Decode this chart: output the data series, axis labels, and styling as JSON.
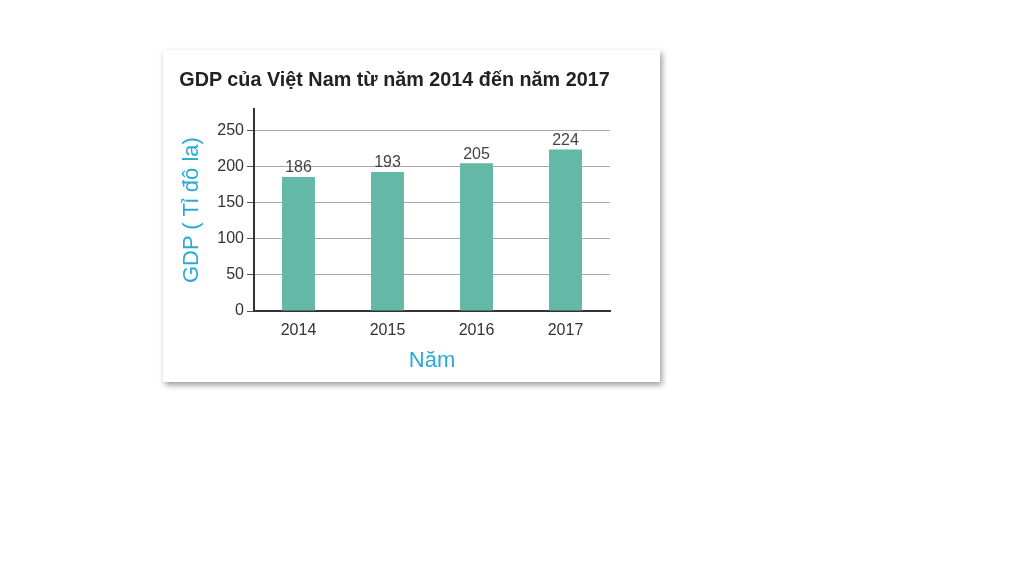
{
  "chart_data": {
    "type": "bar",
    "title": "GDP của Việt Nam từ năm 2014 đến năm 2017",
    "xlabel": "Năm",
    "ylabel": "GDP ( Tỉ đô la)",
    "categories": [
      "2014",
      "2015",
      "2016",
      "2017"
    ],
    "values": [
      186,
      193,
      205,
      224
    ],
    "color": "#63b9a6",
    "ylim": [
      0,
      280
    ],
    "yticks": [
      0,
      50,
      100,
      150,
      200,
      250
    ],
    "grid": "y",
    "data_labels": true
  }
}
